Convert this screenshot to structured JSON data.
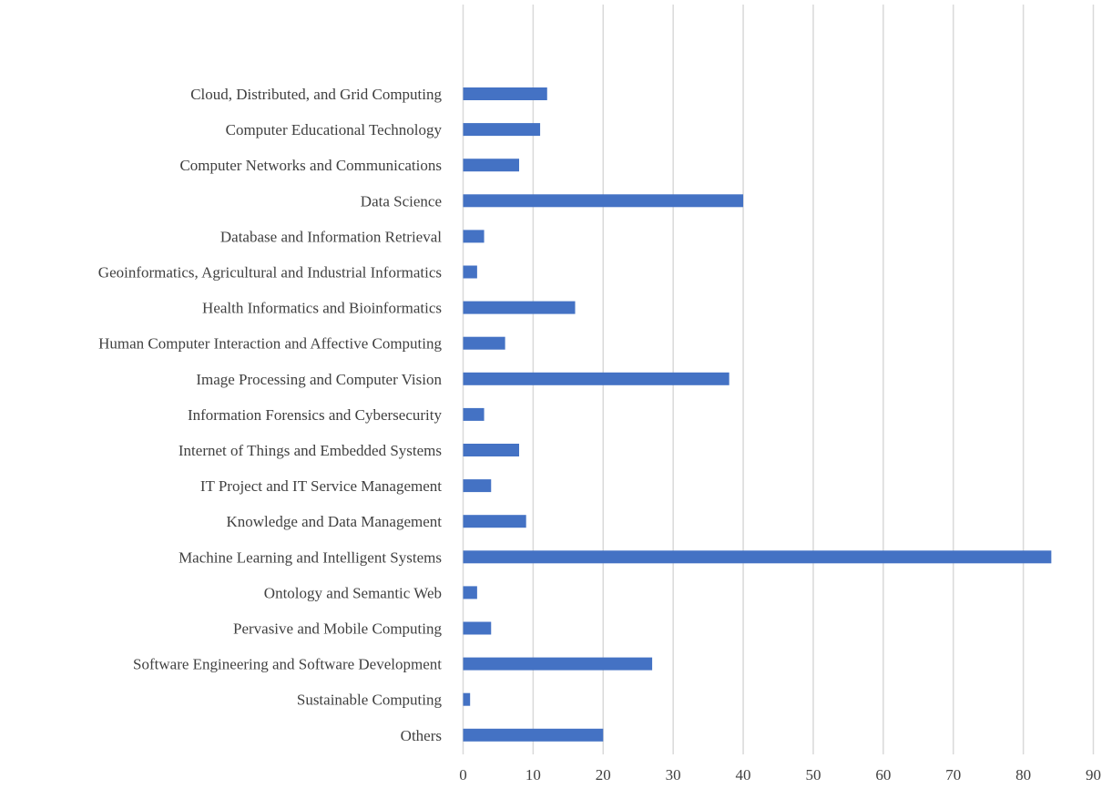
{
  "chart_data": {
    "type": "bar",
    "orientation": "horizontal",
    "categories": [
      "Cloud, Distributed, and Grid Computing",
      "Computer Educational Technology",
      "Computer Networks and Communications",
      "Data Science",
      "Database and Information Retrieval",
      "Geoinformatics, Agricultural and Industrial Informatics",
      "Health Informatics and Bioinformatics",
      "Human Computer Interaction and Affective Computing",
      "Image Processing and Computer Vision",
      "Information Forensics and Cybersecurity",
      "Internet of Things and Embedded Systems",
      "IT Project and IT Service Management",
      "Knowledge and Data Management",
      "Machine Learning and Intelligent Systems",
      "Ontology and Semantic Web",
      "Pervasive and Mobile Computing",
      "Software Engineering and Software Development",
      "Sustainable Computing",
      "Others"
    ],
    "values": [
      12,
      11,
      8,
      40,
      3,
      2,
      16,
      6,
      38,
      3,
      8,
      4,
      9,
      84,
      2,
      4,
      27,
      1,
      20
    ],
    "xlim": [
      0,
      90
    ],
    "xticks": [
      0,
      10,
      20,
      30,
      40,
      50,
      60,
      70,
      80,
      90
    ],
    "grid": "vertical",
    "bar_color": "#4472c4",
    "grid_color": "#d9d9d9",
    "text_color": "#404040",
    "title": "",
    "xlabel": "",
    "ylabel": ""
  }
}
